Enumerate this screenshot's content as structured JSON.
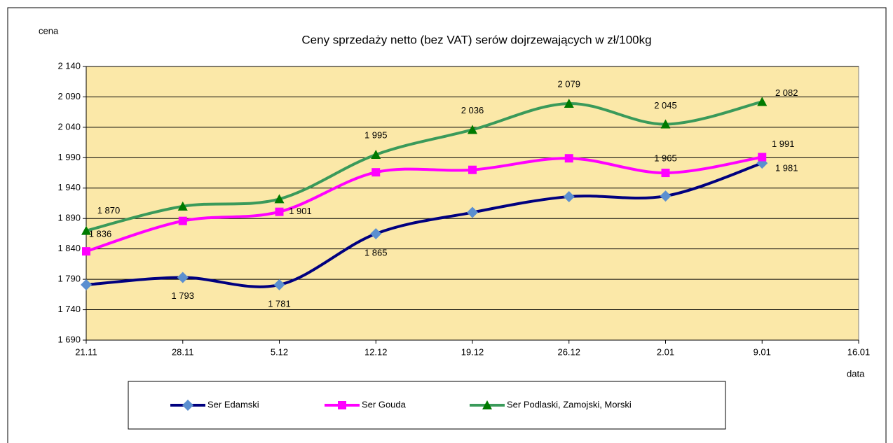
{
  "chart_data": {
    "type": "line",
    "title": "Ceny sprzedaży netto (bez VAT) serów dojrzewających  w zł/100kg",
    "y_label": "cena",
    "x_label": "data",
    "categories": [
      "21.11",
      "28.11",
      "5.12",
      "12.12",
      "19.12",
      "26.12",
      "2.01",
      "9.01",
      "16.01"
    ],
    "ylim": [
      1690,
      2140
    ],
    "yticks": [
      {
        "value": 1690,
        "label": "1 690"
      },
      {
        "value": 1740,
        "label": "1 740"
      },
      {
        "value": 1790,
        "label": "1 790"
      },
      {
        "value": 1840,
        "label": "1 840"
      },
      {
        "value": 1890,
        "label": "1 890"
      },
      {
        "value": 1940,
        "label": "1 940"
      },
      {
        "value": 1990,
        "label": "1 990"
      },
      {
        "value": 2040,
        "label": "2 040"
      },
      {
        "value": 2090,
        "label": "2 090"
      },
      {
        "value": 2140,
        "label": "2 140"
      }
    ],
    "grid": true,
    "plot_background": "#fbe8a8",
    "series": [
      {
        "name": "Ser Edamski",
        "color": "#00007f",
        "marker_color": "#5b8fd0",
        "marker": "diamond",
        "values": [
          1781,
          1793,
          1781,
          1865,
          1900,
          1926,
          1927,
          1981,
          null
        ],
        "value_labels": [
          null,
          "1 793",
          "1 781",
          "1 865",
          null,
          null,
          null,
          "1 981",
          null
        ]
      },
      {
        "name": "Ser Gouda",
        "color": "#ff00ff",
        "marker_color": "#ff00ff",
        "marker": "square",
        "values": [
          1836,
          1886,
          1901,
          1966,
          1970,
          1989,
          1965,
          1991,
          null
        ],
        "value_labels": [
          "1 836",
          null,
          "1 901",
          null,
          null,
          null,
          "1 965",
          "1 991",
          null
        ]
      },
      {
        "name": "Ser Podlaski, Zamojski, Morski",
        "color": "#3a9a5a",
        "marker_color": "#007a00",
        "marker": "triangle",
        "values": [
          1870,
          1910,
          1922,
          1995,
          2036,
          2079,
          2045,
          2082,
          null
        ],
        "value_labels": [
          "1 870",
          null,
          null,
          "1 995",
          "2 036",
          "2 079",
          "2 045",
          "2 082",
          null
        ]
      }
    ]
  }
}
